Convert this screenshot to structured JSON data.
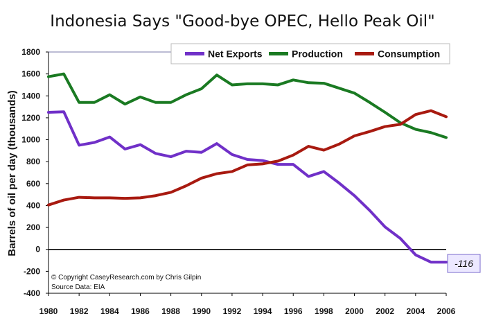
{
  "chart_data": {
    "type": "line",
    "title": "Indonesia Says \"Good-bye OPEC, Hello Peak Oil\"",
    "ylabel": "Barrels of oil per day (thousands)",
    "xlabel": "",
    "x": [
      1980,
      1981,
      1982,
      1983,
      1984,
      1985,
      1986,
      1987,
      1988,
      1989,
      1990,
      1991,
      1992,
      1993,
      1994,
      1995,
      1996,
      1997,
      1998,
      1999,
      2000,
      2001,
      2002,
      2003,
      2004,
      2005,
      2006
    ],
    "xticks": [
      1980,
      1982,
      1984,
      1986,
      1988,
      1990,
      1992,
      1994,
      1996,
      1998,
      2000,
      2002,
      2004,
      2006
    ],
    "yticks": [
      -400,
      -200,
      0,
      200,
      400,
      600,
      800,
      1000,
      1200,
      1400,
      1600,
      1800
    ],
    "xlim": [
      1980,
      2006
    ],
    "ylim": [
      -400,
      1800
    ],
    "grid": false,
    "legend_position": "top",
    "series": [
      {
        "name": "Net Exports",
        "color": "#7030c8",
        "values": [
          1250,
          1255,
          950,
          975,
          1025,
          915,
          955,
          875,
          845,
          895,
          885,
          965,
          865,
          820,
          810,
          775,
          775,
          665,
          710,
          605,
          490,
          355,
          205,
          100,
          -50,
          -116,
          -116
        ]
      },
      {
        "name": "Production",
        "color": "#1a7a22",
        "values": [
          1575,
          1600,
          1340,
          1340,
          1410,
          1325,
          1390,
          1340,
          1340,
          1410,
          1465,
          1590,
          1500,
          1510,
          1510,
          1500,
          1545,
          1520,
          1515,
          1470,
          1425,
          1340,
          1250,
          1155,
          1095,
          1065,
          1020
        ]
      },
      {
        "name": "Consumption",
        "color": "#a81a10",
        "values": [
          405,
          450,
          475,
          470,
          470,
          465,
          470,
          490,
          520,
          580,
          650,
          690,
          710,
          770,
          780,
          805,
          860,
          940,
          905,
          960,
          1035,
          1075,
          1120,
          1140,
          1230,
          1265,
          1210
        ]
      }
    ],
    "annotations": [
      {
        "text": "-116",
        "x": 2006,
        "y": -116
      },
      {
        "text": "© Copyright CaseyResearch.com by Chris Gilpin"
      },
      {
        "text": "Source Data: EIA"
      }
    ]
  }
}
